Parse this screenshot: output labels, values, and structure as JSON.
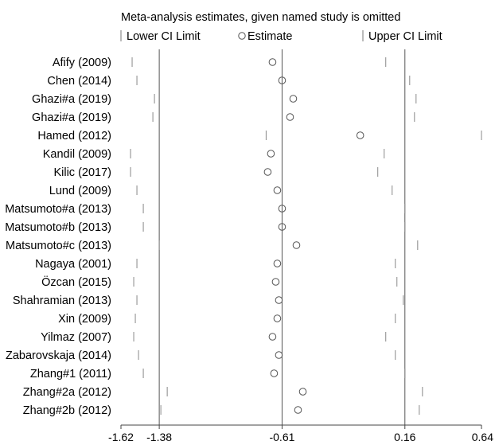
{
  "chart_data": {
    "type": "scatter",
    "title": "Meta-analysis estimates, given named study is omitted",
    "legend": {
      "lower": "Lower CI Limit",
      "estimate": "Estimate",
      "upper": "Upper CI Limit",
      "placement": "top"
    },
    "x_ticks": [
      {
        "value": -1.62,
        "label": "-1.62"
      },
      {
        "value": -1.38,
        "label": "-1.38"
      },
      {
        "value": -0.61,
        "label": "-0.61"
      },
      {
        "value": 0.16,
        "label": "0.16"
      },
      {
        "value": 0.64,
        "label": "0.64"
      }
    ],
    "xlim": [
      -1.62,
      0.64
    ],
    "reference_lines": [
      -1.38,
      -0.61,
      0.16
    ],
    "grid": false,
    "studies": [
      {
        "name": "Afify (2009)",
        "lower": -1.55,
        "estimate": -0.67,
        "upper": 0.04
      },
      {
        "name": "Chen (2014)",
        "lower": -1.52,
        "estimate": -0.61,
        "upper": 0.19
      },
      {
        "name": "Ghazi#a (2019)",
        "lower": -1.41,
        "estimate": -0.54,
        "upper": 0.23
      },
      {
        "name": "Ghazi#a (2019)",
        "lower": -1.42,
        "estimate": -0.56,
        "upper": 0.22
      },
      {
        "name": "Hamed (2012)",
        "lower": -0.71,
        "estimate": -0.12,
        "upper": 0.64
      },
      {
        "name": "Kandil (2009)",
        "lower": -1.56,
        "estimate": -0.68,
        "upper": 0.03
      },
      {
        "name": "Kilic (2017)",
        "lower": -1.56,
        "estimate": -0.7,
        "upper": -0.01
      },
      {
        "name": "Lund (2009)",
        "lower": -1.52,
        "estimate": -0.64,
        "upper": 0.08
      },
      {
        "name": "Matsumoto#a (2013)",
        "lower": -1.48,
        "estimate": -0.61,
        "upper": 0.16
      },
      {
        "name": "Matsumoto#b (2013)",
        "lower": -1.48,
        "estimate": -0.61,
        "upper": 0.16
      },
      {
        "name": "Matsumoto#c (2013)",
        "lower": -1.38,
        "estimate": -0.52,
        "upper": 0.24
      },
      {
        "name": "Nagaya (2001)",
        "lower": -1.52,
        "estimate": -0.64,
        "upper": 0.1
      },
      {
        "name": "Özcan (2015)",
        "lower": -1.54,
        "estimate": -0.65,
        "upper": 0.11
      },
      {
        "name": "Shahramian (2013)",
        "lower": -1.52,
        "estimate": -0.63,
        "upper": 0.15
      },
      {
        "name": "Xin (2009)",
        "lower": -1.53,
        "estimate": -0.64,
        "upper": 0.1
      },
      {
        "name": "Yilmaz (2007)",
        "lower": -1.54,
        "estimate": -0.67,
        "upper": 0.04
      },
      {
        "name": "Zabarovskaja (2014)",
        "lower": -1.51,
        "estimate": -0.63,
        "upper": 0.1
      },
      {
        "name": "Zhang#1 (2011)",
        "lower": -1.48,
        "estimate": -0.66,
        "upper": 0.16
      },
      {
        "name": "Zhang#2a (2012)",
        "lower": -1.33,
        "estimate": -0.48,
        "upper": 0.27
      },
      {
        "name": "Zhang#2b (2012)",
        "lower": -1.37,
        "estimate": -0.51,
        "upper": 0.25
      }
    ]
  }
}
